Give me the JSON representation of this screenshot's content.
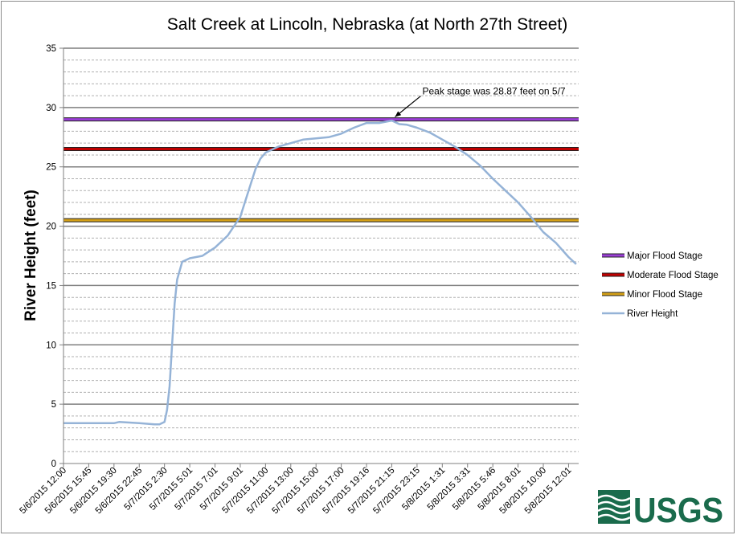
{
  "chart_data": {
    "type": "line",
    "title": "Salt Creek at Lincoln, Nebraska (at North 27th Street)",
    "ylabel": "River Height (feet)",
    "xlabel": "",
    "ylim": [
      0,
      35
    ],
    "y_major_ticks": [
      0,
      5,
      10,
      15,
      20,
      25,
      30,
      35
    ],
    "y_minor_step": 1,
    "grid": true,
    "legend_position": "right",
    "x_tick_labels": [
      "5/6/2015 12:00",
      "5/6/2015 15:45",
      "5/6/2015 19:30",
      "5/6/2015 22:45",
      "5/7/2015 2:30",
      "5/7/2015 5:01",
      "5/7/2015 7:01",
      "5/7/2015 9:01",
      "5/7/2015 11:00",
      "5/7/2015 13:00",
      "5/7/2015 15:00",
      "5/7/2015 17:00",
      "5/7/2015 19:16",
      "5/7/2015 21:15",
      "5/7/2015 23:15",
      "5/8/2015 1:31",
      "5/8/2015 3:31",
      "5/8/2015 5:46",
      "5/8/2015 8:01",
      "5/8/2015 10:00",
      "5/8/2015 12:01"
    ],
    "thresholds": [
      {
        "name": "Major Flood Stage",
        "value": 29.0,
        "color": "#9b3fd6"
      },
      {
        "name": "Moderate Flood Stage",
        "value": 26.5,
        "color": "#c00000"
      },
      {
        "name": "Minor Flood Stage",
        "value": 20.5,
        "color": "#d4a017"
      }
    ],
    "series": [
      {
        "name": "River Height",
        "color": "#95b3d7",
        "x_index": [
          0,
          1,
          2,
          2.2,
          3,
          3.6,
          3.8,
          4.0,
          4.1,
          4.2,
          4.3,
          4.4,
          4.5,
          4.7,
          5.0,
          5.5,
          6.0,
          6.5,
          7.0,
          7.3,
          7.6,
          7.8,
          8.0,
          8.5,
          9.0,
          9.5,
          10.0,
          10.5,
          11.0,
          11.5,
          12.0,
          12.5,
          13.0,
          13.3,
          13.6,
          14.0,
          14.5,
          15.0,
          15.5,
          16.0,
          16.5,
          17.0,
          17.5,
          18.0,
          18.5,
          19.0,
          19.5,
          20.0,
          20.3
        ],
        "values": [
          3.4,
          3.4,
          3.4,
          3.5,
          3.4,
          3.3,
          3.3,
          3.5,
          4.5,
          6.5,
          10.0,
          13.5,
          15.5,
          17.0,
          17.3,
          17.5,
          18.2,
          19.2,
          20.8,
          22.8,
          24.8,
          25.7,
          26.2,
          26.7,
          27.0,
          27.3,
          27.4,
          27.5,
          27.8,
          28.3,
          28.7,
          28.7,
          28.9,
          28.6,
          28.55,
          28.3,
          27.9,
          27.3,
          26.7,
          26.0,
          25.1,
          24.0,
          23.0,
          22.0,
          20.8,
          19.5,
          18.6,
          17.4,
          16.8
        ]
      }
    ],
    "annotations": [
      {
        "text": "Peak stage was 28.87 feet on 5/7",
        "x_index": 13.0,
        "y": 28.87
      }
    ]
  },
  "logo": {
    "name": "usgs-logo",
    "text": "USGS",
    "color": "#1a6b4c"
  }
}
